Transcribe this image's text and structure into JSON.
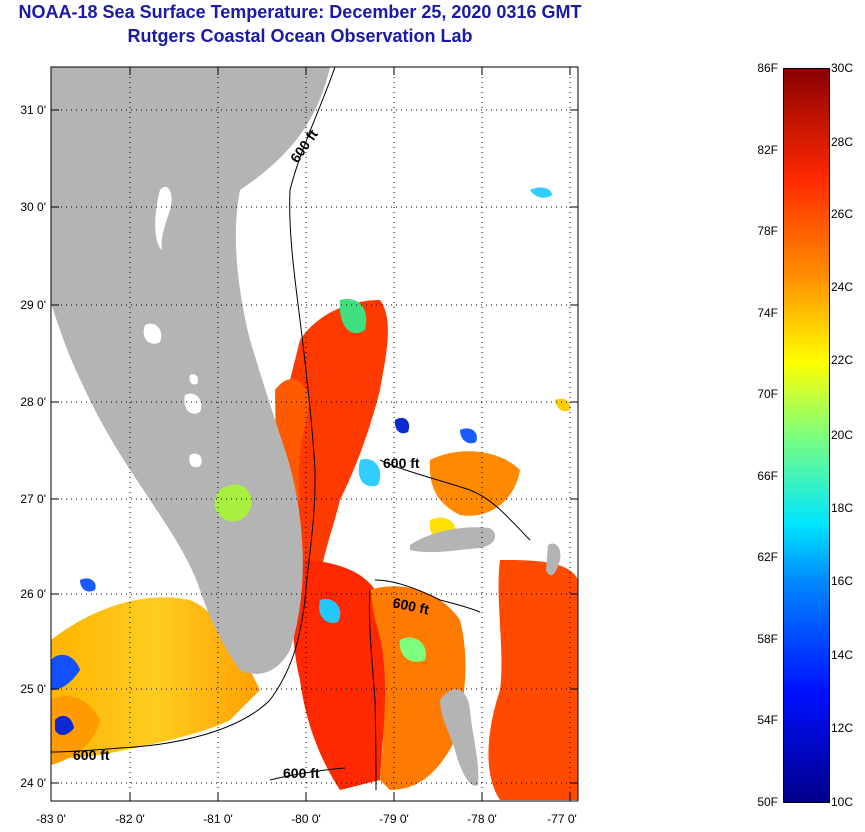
{
  "title_line1": "NOAA-18 Sea Surface Temperature:  December 25, 2020 0316 GMT",
  "title_line2": "Rutgers Coastal Ocean Observation Lab",
  "lat_labels": [
    "31 0'",
    "30 0'",
    "29 0'",
    "28 0'",
    "27 0'",
    "26 0'",
    "25 0'",
    "24 0'"
  ],
  "lon_labels": [
    "-83 0'",
    "-82 0'",
    "-81 0'",
    "-80 0'",
    "-79 0'",
    "-78 0'",
    "-77 0'"
  ],
  "contour_labels": [
    "600 ft",
    "600 ft",
    "600 ft",
    "600 ft",
    "600 ft"
  ],
  "colorbar": {
    "fahrenheit": [
      "86F",
      "82F",
      "78F",
      "74F",
      "70F",
      "66F",
      "62F",
      "58F",
      "54F",
      "50F"
    ],
    "celsius": [
      "30C",
      "28C",
      "26C",
      "24C",
      "22C",
      "20C",
      "18C",
      "16C",
      "14C",
      "12C",
      "10C"
    ]
  },
  "colors": {
    "title": "#1a1aa6",
    "land": "#b4b4b4",
    "no_data": "#ffffff"
  }
}
